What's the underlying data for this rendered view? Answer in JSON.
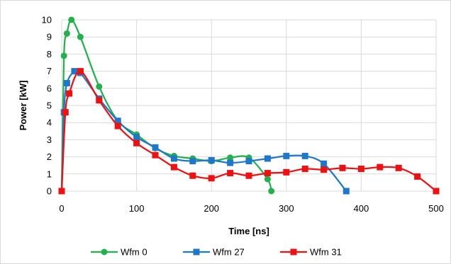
{
  "chart_data": {
    "type": "line",
    "title": "",
    "xlabel": "Time [ns]",
    "ylabel": "Power [kW]",
    "xlim": [
      0,
      500
    ],
    "ylim": [
      0,
      10
    ],
    "xticks": [
      0,
      100,
      200,
      300,
      400,
      500
    ],
    "yticks": [
      0,
      1,
      2,
      3,
      4,
      5,
      6,
      7,
      8,
      9,
      10
    ],
    "grid": true,
    "legend": "bottom",
    "series": [
      {
        "name": "Wfm 0",
        "color": "#22b14c",
        "marker": "circle",
        "x": [
          0,
          3,
          7,
          13,
          25,
          50,
          75,
          100,
          125,
          150,
          175,
          200,
          225,
          250,
          275,
          280
        ],
        "y": [
          0,
          7.9,
          9.2,
          10.0,
          9.0,
          6.1,
          4.1,
          3.3,
          2.5,
          2.05,
          1.9,
          1.75,
          1.95,
          1.95,
          0.7,
          0
        ]
      },
      {
        "name": "Wfm 27",
        "color": "#1f77c9",
        "marker": "square",
        "x": [
          0,
          3,
          7,
          17,
          25,
          50,
          75,
          100,
          125,
          150,
          175,
          200,
          225,
          250,
          275,
          300,
          325,
          350,
          380
        ],
        "y": [
          0,
          4.6,
          6.3,
          7.0,
          6.9,
          5.4,
          4.1,
          3.15,
          2.55,
          1.9,
          1.75,
          1.8,
          1.65,
          1.75,
          1.9,
          2.05,
          2.05,
          1.6,
          0
        ]
      },
      {
        "name": "Wfm 31",
        "color": "#ee1111",
        "marker": "square",
        "x": [
          0,
          5,
          10,
          25,
          50,
          75,
          100,
          125,
          150,
          175,
          200,
          225,
          250,
          275,
          300,
          325,
          350,
          375,
          400,
          425,
          450,
          475,
          500
        ],
        "y": [
          0,
          4.6,
          5.7,
          7.0,
          5.3,
          3.8,
          2.8,
          2.1,
          1.4,
          0.9,
          0.75,
          1.05,
          0.9,
          1.05,
          1.1,
          1.3,
          1.25,
          1.35,
          1.3,
          1.4,
          1.35,
          0.85,
          0
        ]
      }
    ]
  }
}
